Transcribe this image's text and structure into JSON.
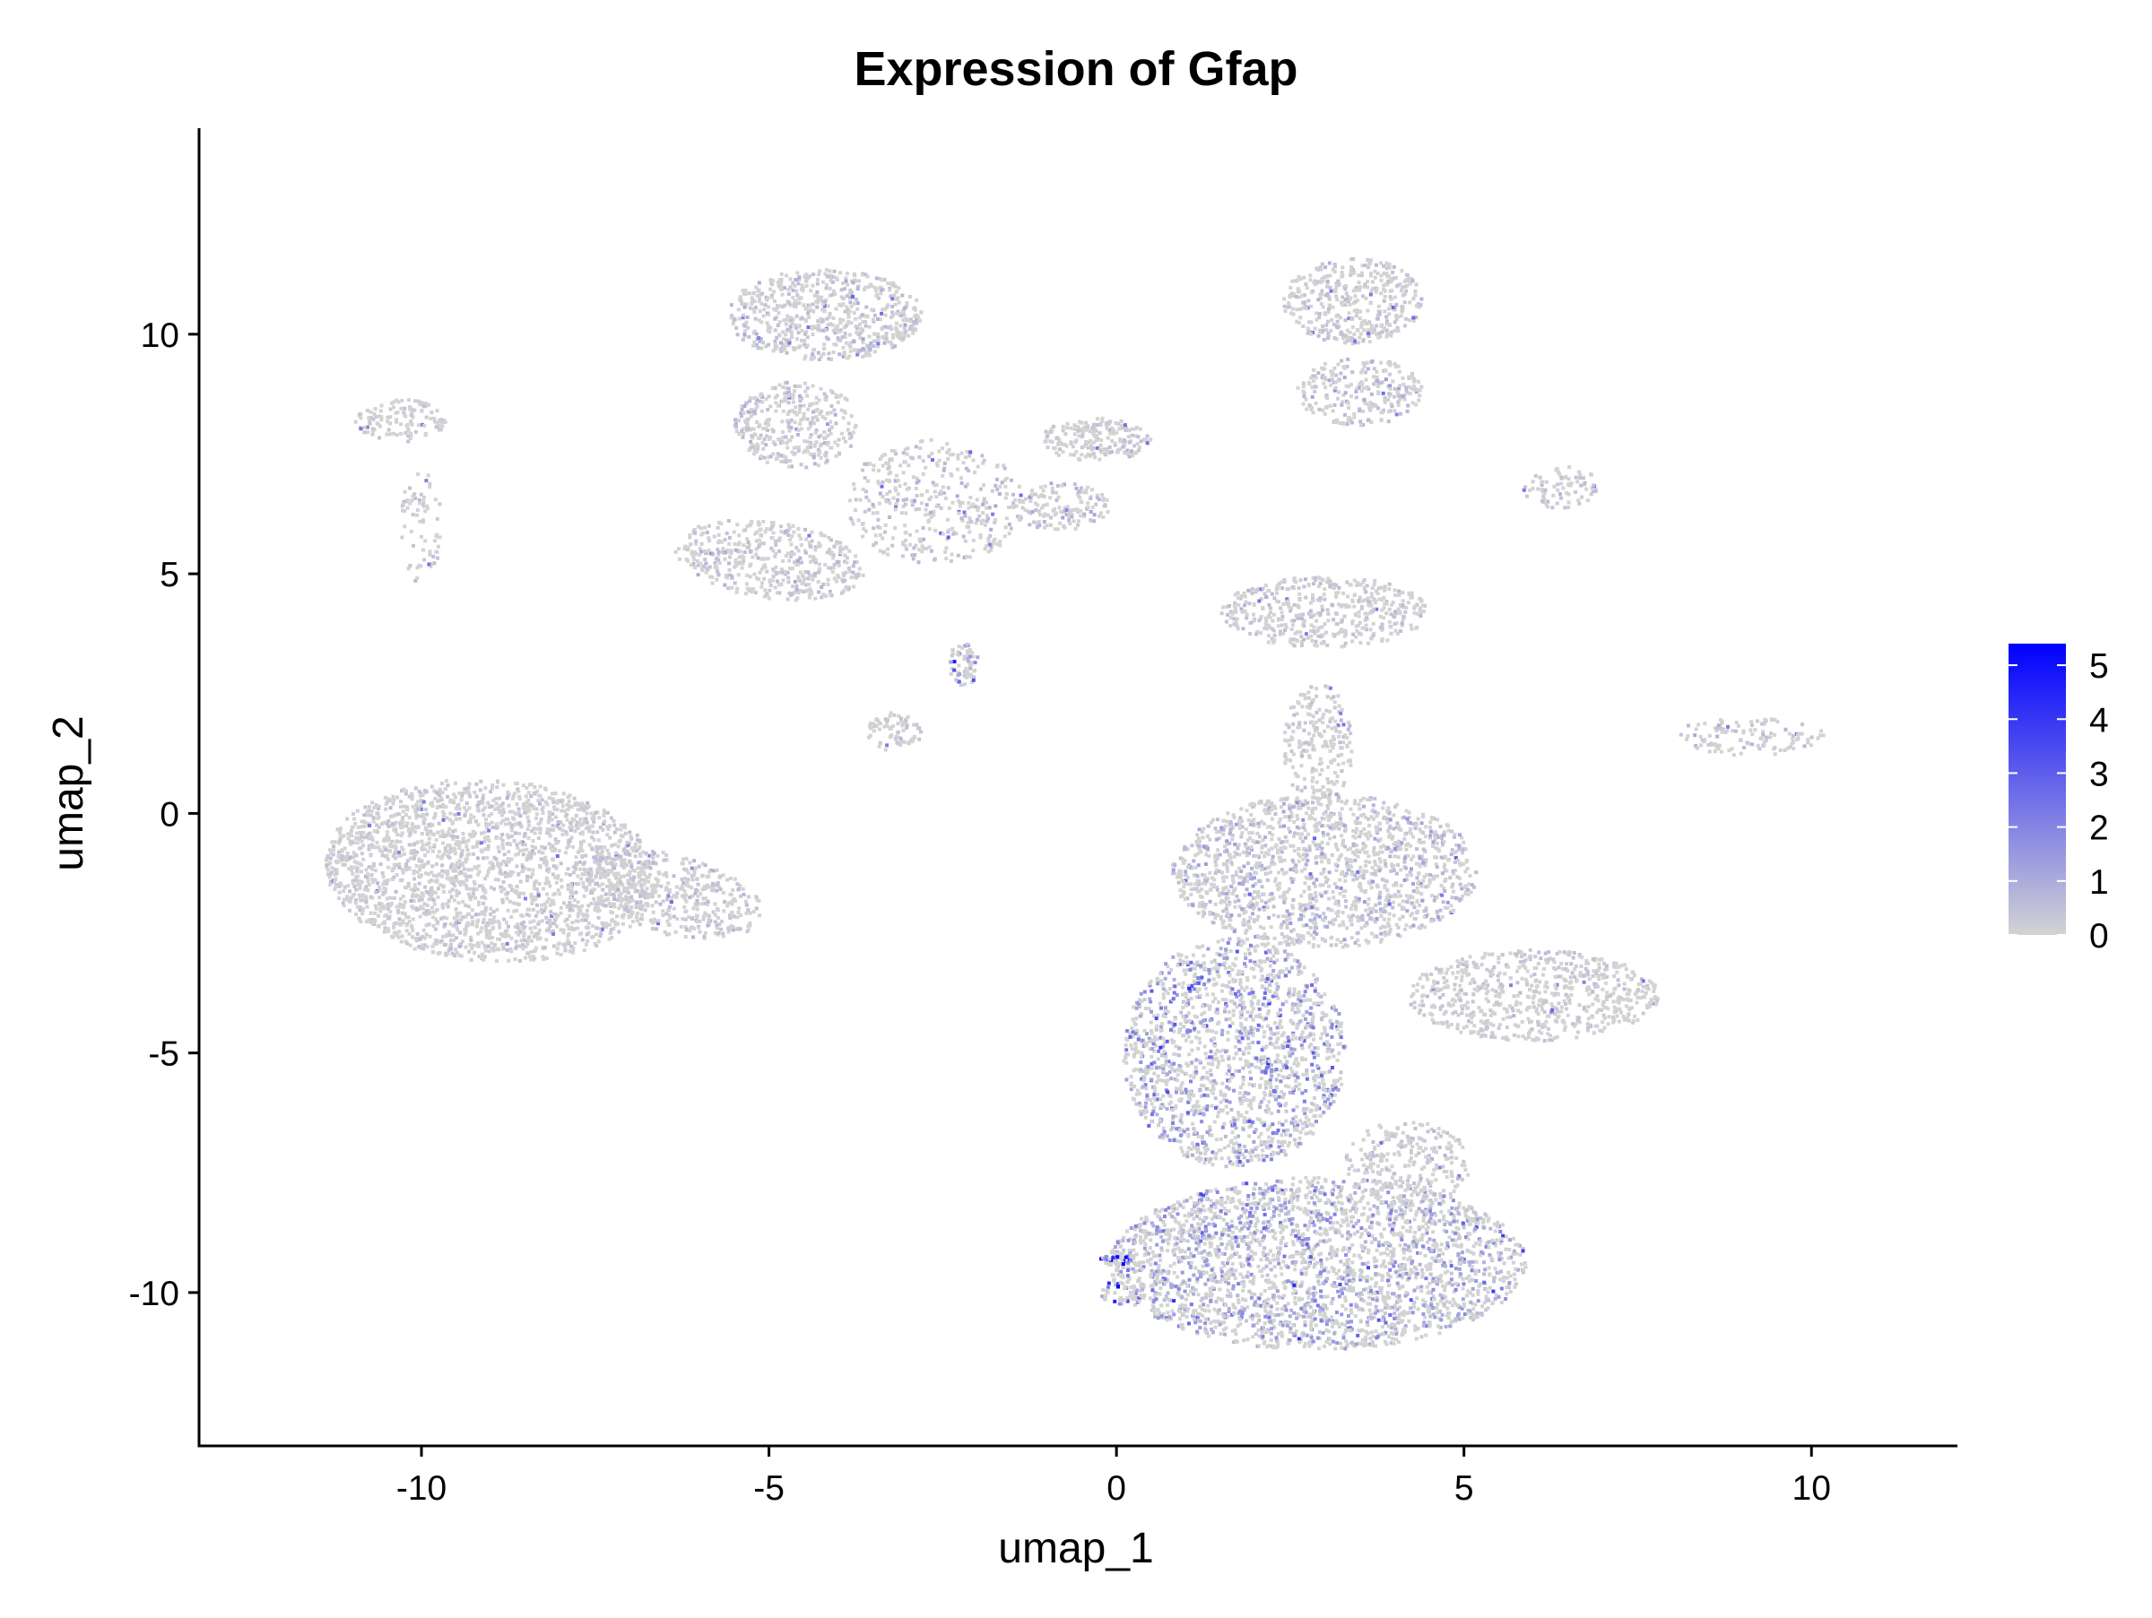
{
  "chart_data": {
    "type": "scatter",
    "title": "Expression of Gfap",
    "xlabel": "umap_1",
    "ylabel": "umap_2",
    "xlim": [
      -13.2,
      12.1
    ],
    "ylim": [
      -13.2,
      14.3
    ],
    "x_ticks": [
      -10,
      -5,
      0,
      5,
      10
    ],
    "x_tick_labels": [
      "-10",
      "-5",
      "0",
      "5",
      "10"
    ],
    "y_ticks": [
      -10,
      -5,
      0,
      5,
      10
    ],
    "y_tick_labels": [
      "-10",
      "-5",
      "0",
      "5",
      "10"
    ],
    "grid": false,
    "legend": {
      "placement": "right",
      "type": "colorbar",
      "min": 0,
      "max": 5.4,
      "ticks": [
        0,
        1,
        2,
        3,
        4,
        5
      ],
      "tick_labels": [
        "0",
        "1",
        "2",
        "3",
        "4",
        "5"
      ],
      "low_color": "#d3d3d3",
      "high_color": "#0000ff"
    },
    "clusters": [
      {
        "name": "c1",
        "cx": -9.0,
        "cy": -1.2,
        "rx": 2.4,
        "ry": 1.9,
        "angle": -10,
        "expr": 0.25,
        "density": 2200
      },
      {
        "name": "c1b",
        "cx": -6.4,
        "cy": -1.7,
        "rx": 1.4,
        "ry": 0.8,
        "angle": -25,
        "expr": 0.35,
        "density": 450
      },
      {
        "name": "c2",
        "cx": -10.3,
        "cy": 8.2,
        "rx": 0.65,
        "ry": 0.45,
        "angle": 0,
        "expr": 0.2,
        "density": 120
      },
      {
        "name": "c2b",
        "cx": -10.0,
        "cy": 6.0,
        "rx": 0.3,
        "ry": 1.2,
        "angle": 0,
        "expr": 0.25,
        "density": 70
      },
      {
        "name": "c3",
        "cx": -4.2,
        "cy": 10.4,
        "rx": 1.4,
        "ry": 0.95,
        "angle": 0,
        "expr": 0.4,
        "density": 650
      },
      {
        "name": "c3b",
        "cx": -4.6,
        "cy": 8.1,
        "rx": 0.9,
        "ry": 0.9,
        "angle": 0,
        "expr": 0.4,
        "density": 350
      },
      {
        "name": "c3c",
        "cx": -5.0,
        "cy": 5.3,
        "rx": 1.4,
        "ry": 0.8,
        "angle": -15,
        "expr": 0.35,
        "density": 450
      },
      {
        "name": "c3d",
        "cx": -2.6,
        "cy": 6.5,
        "rx": 1.3,
        "ry": 1.3,
        "angle": 0,
        "expr": 0.45,
        "density": 380
      },
      {
        "name": "c4",
        "cx": -0.3,
        "cy": 7.8,
        "rx": 0.8,
        "ry": 0.45,
        "angle": 0,
        "expr": 0.3,
        "density": 200
      },
      {
        "name": "c4b",
        "cx": -0.8,
        "cy": 6.4,
        "rx": 0.7,
        "ry": 0.5,
        "angle": 0,
        "expr": 0.45,
        "density": 140
      },
      {
        "name": "c5",
        "cx": -2.2,
        "cy": 3.1,
        "rx": 0.22,
        "ry": 0.45,
        "angle": 0,
        "expr": 1.2,
        "density": 60
      },
      {
        "name": "c5b",
        "cx": -3.2,
        "cy": 1.7,
        "rx": 0.4,
        "ry": 0.4,
        "angle": 0,
        "expr": 0.2,
        "density": 70
      },
      {
        "name": "c6",
        "cx": 3.4,
        "cy": 10.7,
        "rx": 1.0,
        "ry": 0.9,
        "angle": 0,
        "expr": 0.3,
        "density": 420
      },
      {
        "name": "c6b",
        "cx": 3.5,
        "cy": 8.8,
        "rx": 0.9,
        "ry": 0.7,
        "angle": 0,
        "expr": 0.5,
        "density": 260
      },
      {
        "name": "c6c",
        "cx": 6.4,
        "cy": 6.8,
        "rx": 0.55,
        "ry": 0.45,
        "angle": 0,
        "expr": 0.3,
        "density": 80
      },
      {
        "name": "c7",
        "cx": 3.0,
        "cy": 4.2,
        "rx": 1.5,
        "ry": 0.75,
        "angle": 0,
        "expr": 0.3,
        "density": 480
      },
      {
        "name": "c7b",
        "cx": 2.9,
        "cy": 1.4,
        "rx": 0.5,
        "ry": 1.3,
        "angle": 0,
        "expr": 0.25,
        "density": 220
      },
      {
        "name": "c8",
        "cx": 3.0,
        "cy": -1.2,
        "rx": 2.2,
        "ry": 1.6,
        "angle": 0,
        "expr": 0.55,
        "density": 1500
      },
      {
        "name": "c8b",
        "cx": 1.7,
        "cy": -5.0,
        "rx": 1.6,
        "ry": 2.4,
        "angle": 0,
        "expr": 1.25,
        "density": 1600
      },
      {
        "name": "c8c",
        "cx": 2.9,
        "cy": -9.4,
        "rx": 3.0,
        "ry": 1.8,
        "angle": 0,
        "expr": 1.0,
        "density": 2600
      },
      {
        "name": "c8d",
        "cx": 4.2,
        "cy": -7.3,
        "rx": 0.9,
        "ry": 0.9,
        "angle": 0,
        "expr": 0.3,
        "density": 260
      },
      {
        "name": "c9",
        "cx": 6.0,
        "cy": -3.8,
        "rx": 1.8,
        "ry": 0.95,
        "angle": 0,
        "expr": 0.25,
        "density": 700
      },
      {
        "name": "c10",
        "cx": 9.1,
        "cy": 1.6,
        "rx": 1.1,
        "ry": 0.4,
        "angle": 0,
        "expr": 0.3,
        "density": 120
      },
      {
        "name": "c11",
        "cx": 0.0,
        "cy": -9.3,
        "rx": 0.22,
        "ry": 0.15,
        "angle": 0,
        "expr": 4.5,
        "density": 35
      },
      {
        "name": "c11b",
        "cx": 0.1,
        "cy": -10.0,
        "rx": 0.35,
        "ry": 0.25,
        "angle": 0,
        "expr": 2.5,
        "density": 40
      }
    ]
  }
}
